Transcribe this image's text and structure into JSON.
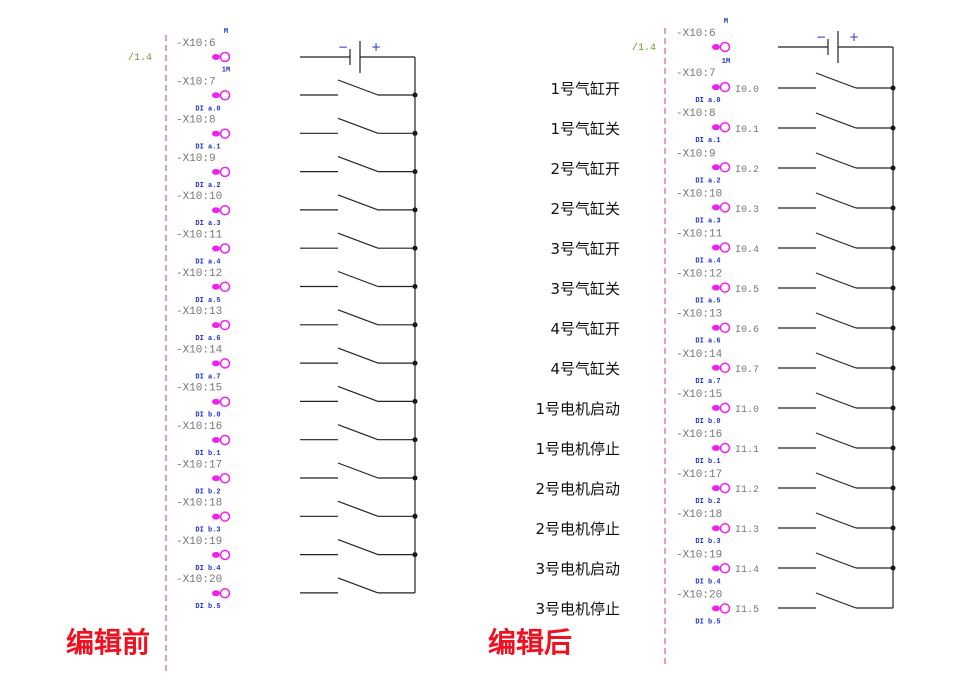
{
  "before": {
    "ref": "/1.4",
    "polarity": [
      "−",
      "+"
    ],
    "terminals": [
      {
        "top": "M",
        "id": "-X10:6"
      },
      {
        "top": "1M",
        "id": "-X10:7",
        "bottom": "DI a.0"
      },
      {
        "id": "-X10:8",
        "bottom": "DI a.1"
      },
      {
        "id": "-X10:9",
        "bottom": "DI a.2"
      },
      {
        "id": "-X10:10",
        "bottom": "DI a.3"
      },
      {
        "id": "-X10:11",
        "bottom": "DI a.4"
      },
      {
        "id": "-X10:12",
        "bottom": "DI a.5"
      },
      {
        "id": "-X10:13",
        "bottom": "DI a.6"
      },
      {
        "id": "-X10:14",
        "bottom": "DI a.7"
      },
      {
        "id": "-X10:15",
        "bottom": "DI b.0"
      },
      {
        "id": "-X10:16",
        "bottom": "DI b.1"
      },
      {
        "id": "-X10:17",
        "bottom": "DI b.2"
      },
      {
        "id": "-X10:18",
        "bottom": "DI b.3"
      },
      {
        "id": "-X10:19",
        "bottom": "DI b.4"
      },
      {
        "id": "-X10:20",
        "bottom": "DI b.5"
      }
    ],
    "title": "编辑前"
  },
  "after": {
    "ref": "/1.4",
    "polarity": [
      "−",
      "+"
    ],
    "terminals": [
      {
        "top": "M",
        "id": "-X10:6"
      },
      {
        "top": "1M",
        "id": "-X10:7",
        "bottom": "DI a.0"
      },
      {
        "id": "-X10:8",
        "bottom": "DI a.1"
      },
      {
        "id": "-X10:9",
        "bottom": "DI a.2"
      },
      {
        "id": "-X10:10",
        "bottom": "DI a.3"
      },
      {
        "id": "-X10:11",
        "bottom": "DI a.4"
      },
      {
        "id": "-X10:12",
        "bottom": "DI a.5"
      },
      {
        "id": "-X10:13",
        "bottom": "DI a.6"
      },
      {
        "id": "-X10:14",
        "bottom": "DI a.7"
      },
      {
        "id": "-X10:15",
        "bottom": "DI b.0"
      },
      {
        "id": "-X10:16",
        "bottom": "DI b.1"
      },
      {
        "id": "-X10:17",
        "bottom": "DI b.2"
      },
      {
        "id": "-X10:18",
        "bottom": "DI b.3"
      },
      {
        "id": "-X10:19",
        "bottom": "DI b.4"
      },
      {
        "id": "-X10:20",
        "bottom": "DI b.5"
      }
    ],
    "inputs": [
      {
        "label": "1号气缸开",
        "address": "I0.0"
      },
      {
        "label": "1号气缸关",
        "address": "I0.1"
      },
      {
        "label": "2号气缸开",
        "address": "I0.2"
      },
      {
        "label": "2号气缸关",
        "address": "I0.3"
      },
      {
        "label": "3号气缸开",
        "address": "I0.4"
      },
      {
        "label": "3号气缸关",
        "address": "I0.5"
      },
      {
        "label": "4号气缸开",
        "address": "I0.6"
      },
      {
        "label": "4号气缸关",
        "address": "I0.7"
      },
      {
        "label": "1号电机启动",
        "address": "I1.0"
      },
      {
        "label": "1号电机停止",
        "address": "I1.1"
      },
      {
        "label": "2号电机启动",
        "address": "I1.2"
      },
      {
        "label": "2号电机停止",
        "address": "I1.3"
      },
      {
        "label": "3号电机启动",
        "address": "I1.4"
      },
      {
        "label": "3号电机停止",
        "address": "I1.5"
      }
    ],
    "title": "编辑后"
  }
}
